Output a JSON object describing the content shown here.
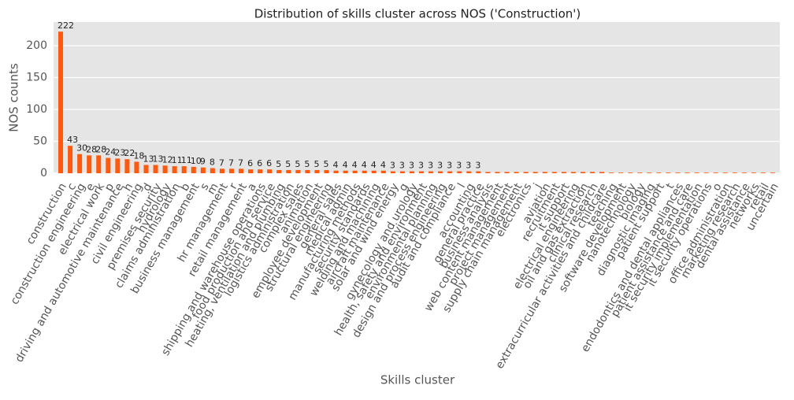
{
  "chart_data": {
    "type": "bar",
    "title": "Distribution of skills cluster across NOS ('Construction')",
    "x_label": "Skills cluster",
    "y_label": "NOS counts",
    "categories": [
      "construction",
      "c",
      "construction engineering",
      "e",
      "electrical work",
      "p",
      "driving and automotive maintenance",
      "h",
      "civil engineering",
      "d",
      "premises security",
      "hydrology",
      "claims administration",
      "b",
      "business management",
      "s",
      "m",
      "hr management",
      "r",
      "retail management",
      "a",
      "shipping and warehouse operations",
      "food production and service",
      "heating, ventilation and plumbing",
      "logistics administration",
      "complex sales",
      "animation",
      "employee development",
      "structural engineering",
      "general sales",
      "medical admin",
      "manufacturing methods",
      "security standards",
      "welding and machining",
      "aircraft maintenance",
      "solar and wind energy",
      "g",
      "gynecology and urology",
      "health, safety and environment",
      "environmental planning",
      "design and process engineering",
      "audit and compliance",
      "l",
      "accounting",
      "general practice",
      "business analysis",
      "web content management",
      "project management",
      "supply chain management",
      "electronics",
      "j",
      "aviation",
      "recruitment",
      "it support",
      "electrical engineering",
      "oil and gas extraction",
      "clinical research",
      "extracurricular activities and childcare",
      "teaching",
      "software development",
      "nanotechnology",
      "biology",
      "diagnostic imaging",
      "patient support",
      "t",
      "endodontics and dental appliances",
      "patient assistance and care",
      "it security implementation",
      "it security operations",
      "o",
      "office administration",
      "marketing research",
      "dental assistance",
      "networks",
      "retail",
      "uncertain"
    ],
    "values": [
      222,
      43,
      30,
      28,
      28,
      24,
      23,
      22,
      18,
      13,
      13,
      12,
      11,
      11,
      10,
      9,
      8,
      7,
      7,
      7,
      6,
      6,
      6,
      5,
      5,
      5,
      5,
      5,
      5,
      4,
      4,
      4,
      4,
      4,
      4,
      3,
      3,
      3,
      3,
      3,
      3,
      3,
      3,
      3,
      3,
      2,
      2,
      2,
      2,
      2,
      2,
      2,
      2,
      2,
      2,
      2,
      2,
      2,
      1,
      1,
      1,
      1,
      1,
      1,
      1,
      1,
      1,
      1,
      1,
      1,
      1,
      1,
      1,
      1,
      1,
      1
    ],
    "data_label_min": 3,
    "color": "#fe5a0e",
    "ylim": [
      0,
      237
    ],
    "yticks": [
      0,
      50,
      100,
      150,
      200
    ],
    "grid": true
  }
}
